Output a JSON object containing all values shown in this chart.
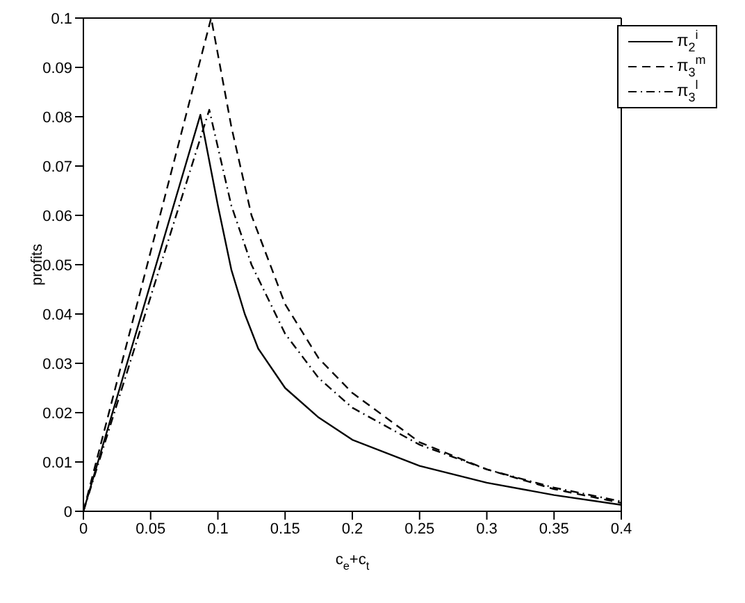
{
  "chart_data": {
    "type": "line",
    "xlabel": "c$_{e}$+c$_{t}$",
    "ylabel": "profits",
    "xlim": [
      0,
      0.4
    ],
    "xticks": [
      0,
      0.05,
      0.1,
      0.15,
      0.2,
      0.25,
      0.3,
      0.35,
      0.4
    ],
    "ylim": [
      0,
      0.1
    ],
    "yticks": [
      0,
      0.01,
      0.02,
      0.03,
      0.04,
      0.05,
      0.06,
      0.07,
      0.08,
      0.09,
      0.1
    ],
    "legend": "top right",
    "marker": "none",
    "series": [
      {
        "name": "π$_{2}$$^{i}$",
        "color": "#000000",
        "line_style": "solid",
        "x": [
          0,
          0.087,
          0.1,
          0.11,
          0.12,
          0.13,
          0.15,
          0.175,
          0.2,
          0.25,
          0.3,
          0.35,
          0.4
        ],
        "values": [
          0,
          0.0804,
          0.062,
          0.049,
          0.04,
          0.033,
          0.025,
          0.019,
          0.0145,
          0.0092,
          0.0058,
          0.0033,
          0.0013
        ]
      },
      {
        "name": "π$_{3}$$^{m}$",
        "color": "#000000",
        "line_style": "dashed",
        "x": [
          0,
          0.095,
          0.11,
          0.125,
          0.15,
          0.175,
          0.2,
          0.25,
          0.3,
          0.35,
          0.4
        ],
        "values": [
          0,
          0.1,
          0.078,
          0.06,
          0.042,
          0.031,
          0.024,
          0.014,
          0.0085,
          0.0045,
          0.0017
        ]
      },
      {
        "name": "π$_{3}$$^{l}$",
        "color": "#000000",
        "line_style": "dashdot",
        "x": [
          0,
          0.0936,
          0.11,
          0.125,
          0.15,
          0.175,
          0.2,
          0.25,
          0.3,
          0.35,
          0.4
        ],
        "values": [
          0,
          0.0814,
          0.062,
          0.05,
          0.036,
          0.027,
          0.021,
          0.0135,
          0.0085,
          0.0048,
          0.002
        ]
      }
    ]
  }
}
